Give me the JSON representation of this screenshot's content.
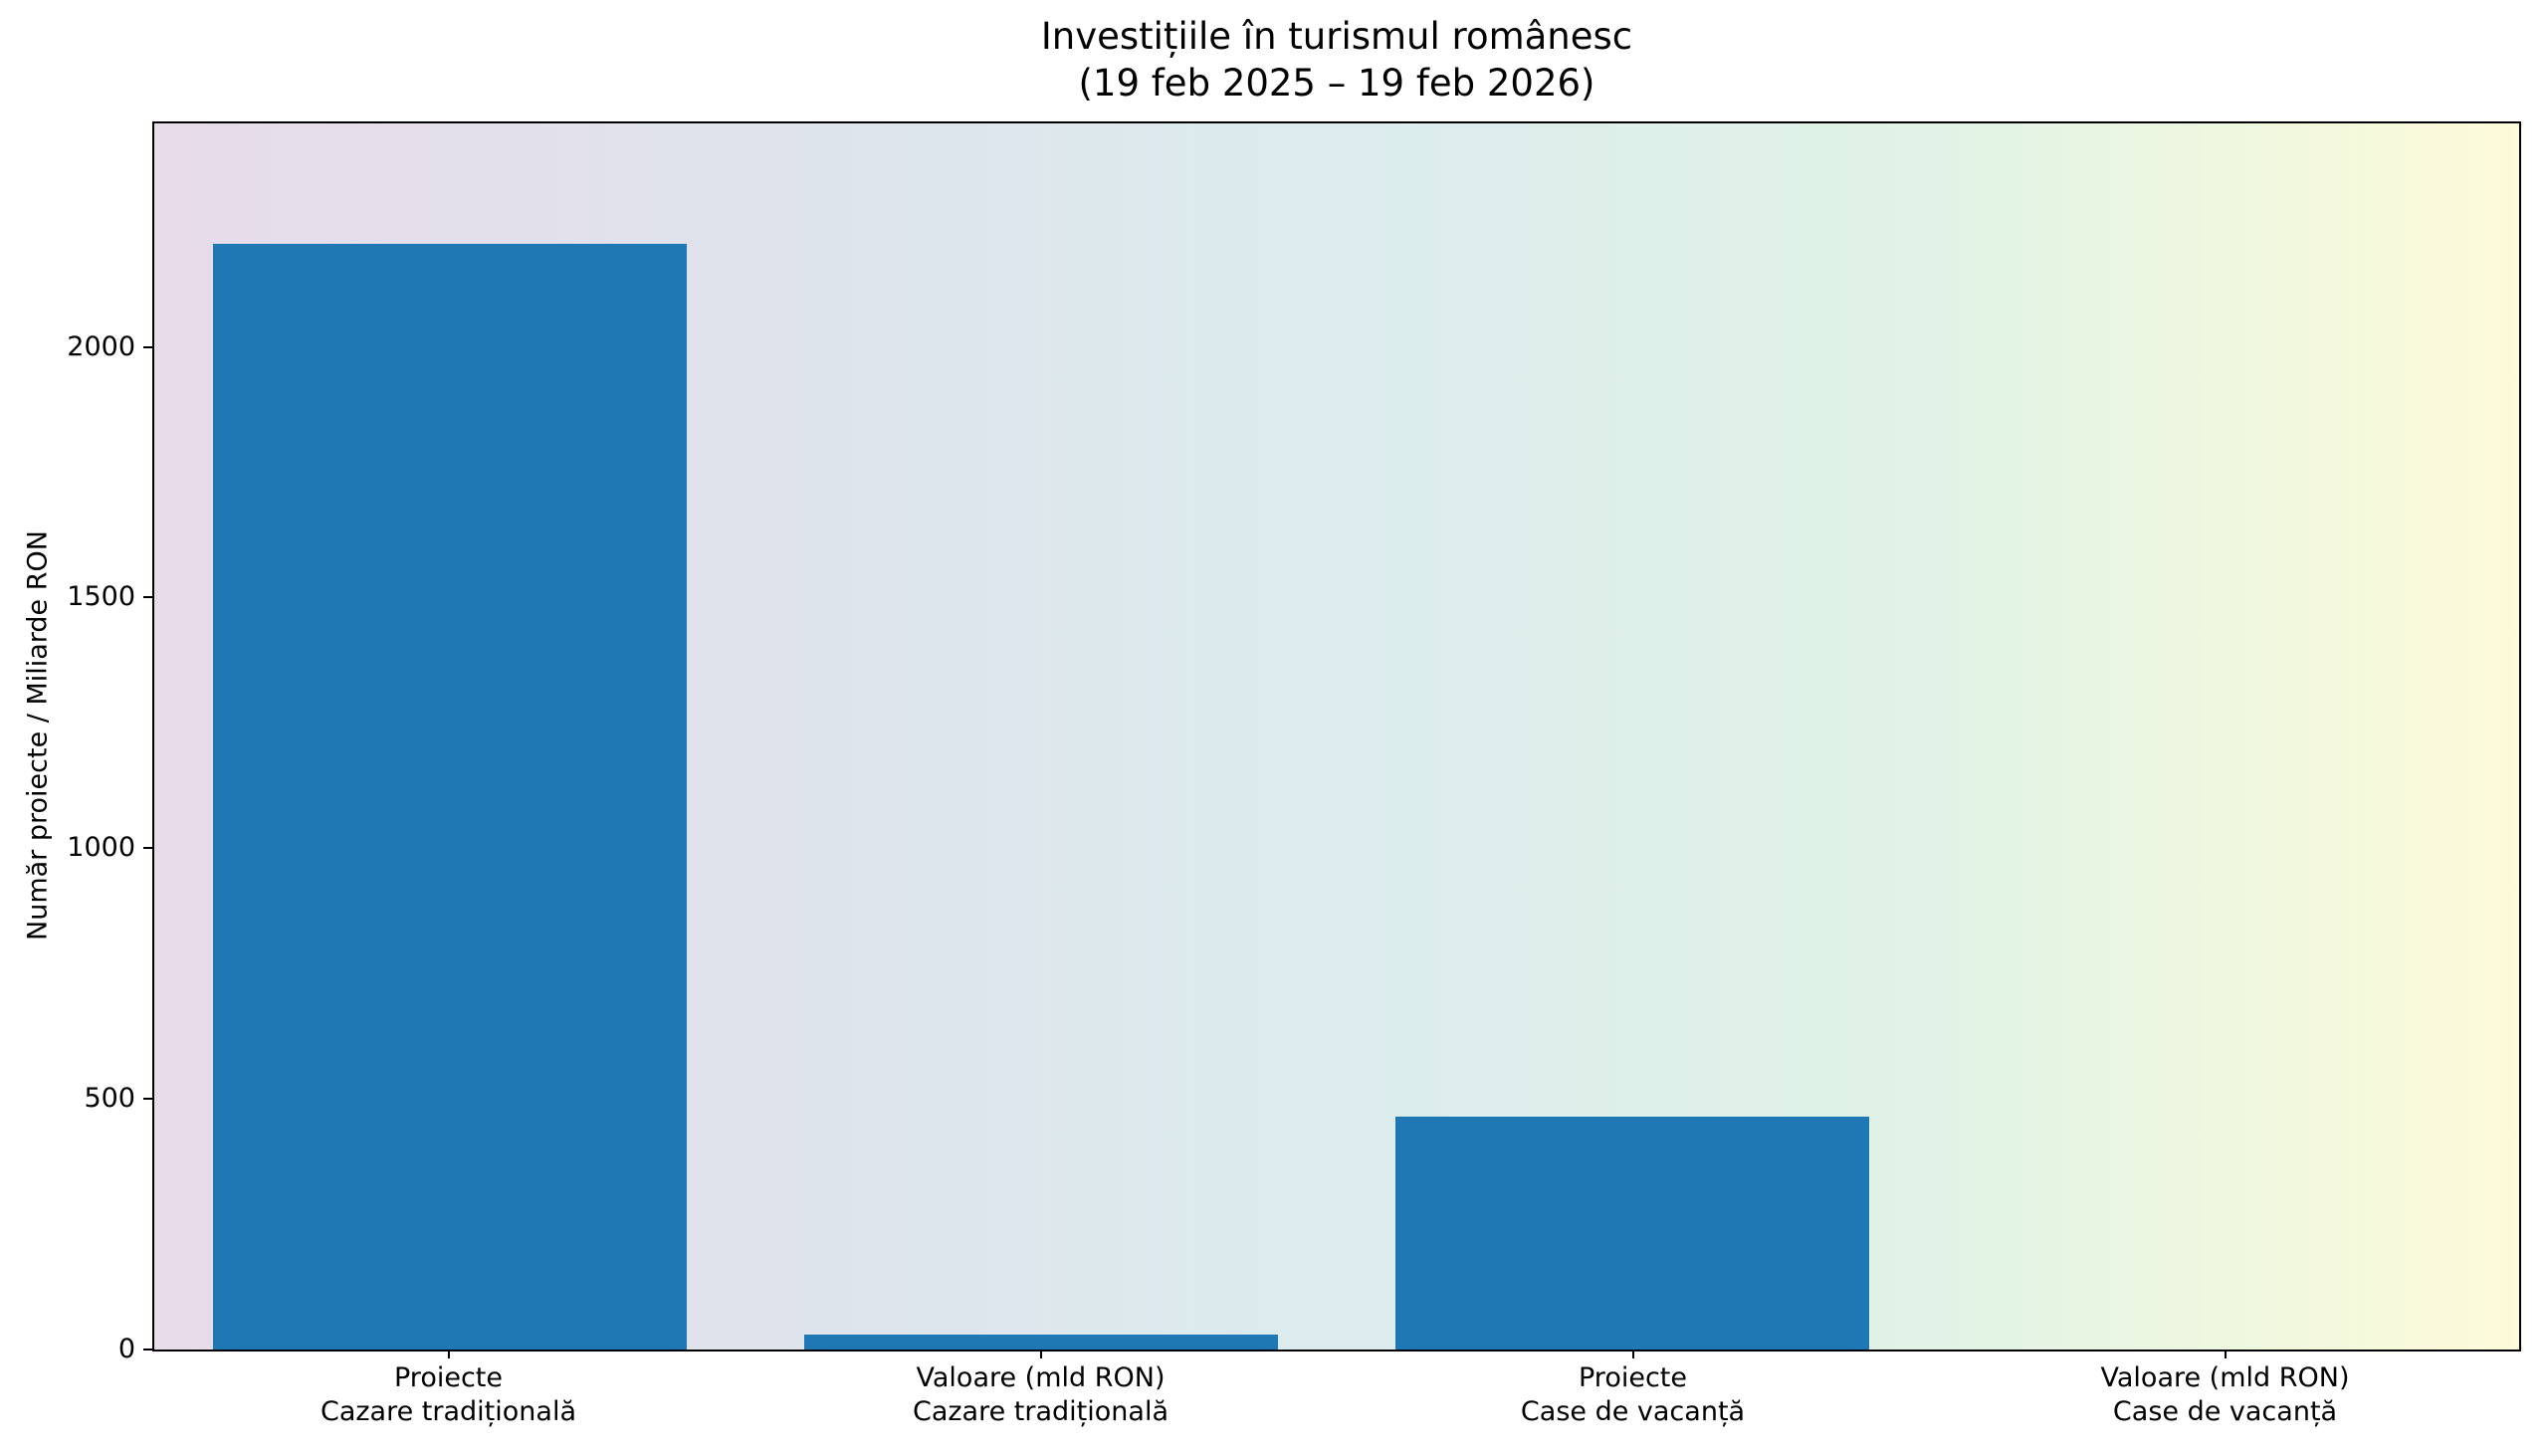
{
  "chart_data": {
    "type": "bar",
    "title": "Investițiile în turismul românesc",
    "subtitle": "(19 feb 2025 – 19 feb 2026)",
    "ylabel": "Număr proiecte / Miliarde RON",
    "xlabel": "",
    "categories": [
      [
        "Proiecte",
        "Cazare tradițională"
      ],
      [
        "Valoare (mld RON)",
        "Cazare tradițională"
      ],
      [
        "Proiecte",
        "Case de vacanță"
      ],
      [
        "Valoare (mld RON)",
        "Case de vacanță"
      ]
    ],
    "values": [
      2210,
      30,
      465,
      0
    ],
    "yticks": [
      0,
      500,
      1000,
      1500,
      2000
    ],
    "ylim": [
      0,
      2450
    ],
    "bar_width_fraction": 0.8,
    "grid": false,
    "legend": false,
    "bar_color": "#1f77b4",
    "axis_color": "#000000",
    "background_gradient": [
      {
        "pos": 0,
        "color": "#e8dcea"
      },
      {
        "pos": 25,
        "color": "#dfe3ec"
      },
      {
        "pos": 50,
        "color": "#dcecee"
      },
      {
        "pos": 75,
        "color": "#e0f3e6"
      },
      {
        "pos": 100,
        "color": "#fdfbd9"
      }
    ]
  }
}
